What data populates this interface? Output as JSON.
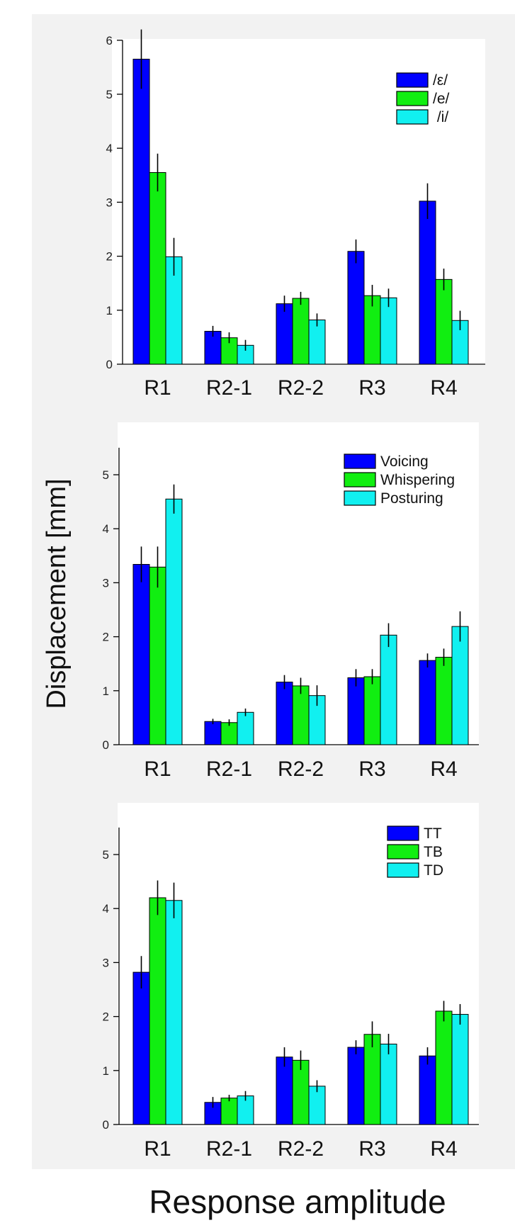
{
  "ylabel": "Displacement [mm]",
  "xlabel": "Response amplitude",
  "colors": {
    "series1": "#0000ff",
    "series2": "#11ee11",
    "series3": "#11f0f0",
    "panel_bg": "#f2f2f2"
  },
  "chart_data": [
    {
      "type": "bar",
      "categories": [
        "R1",
        "R2-1",
        "R2-2",
        "R3",
        "R4"
      ],
      "ylim": [
        0,
        6
      ],
      "yticks": [
        0,
        1,
        2,
        3,
        4,
        5,
        6
      ],
      "legend": "top-right",
      "series": [
        {
          "name": "/ε/",
          "values": [
            5.65,
            0.61,
            1.12,
            2.09,
            3.02
          ],
          "errors": [
            0.55,
            0.1,
            0.15,
            0.22,
            0.33
          ]
        },
        {
          "name": "/e/",
          "values": [
            3.55,
            0.49,
            1.22,
            1.27,
            1.57
          ],
          "errors": [
            0.35,
            0.1,
            0.12,
            0.2,
            0.2
          ]
        },
        {
          "name": " /i/",
          "values": [
            1.99,
            0.35,
            0.82,
            1.23,
            0.81
          ],
          "errors": [
            0.35,
            0.1,
            0.12,
            0.17,
            0.18
          ]
        }
      ]
    },
    {
      "type": "bar",
      "categories": [
        "R1",
        "R2-1",
        "R2-2",
        "R3",
        "R4"
      ],
      "ylim": [
        0,
        5.5
      ],
      "yticks": [
        0,
        1,
        2,
        3,
        4,
        5
      ],
      "legend": "top-right",
      "series": [
        {
          "name": "Voicing",
          "values": [
            3.34,
            0.43,
            1.16,
            1.24,
            1.56
          ],
          "errors": [
            0.33,
            0.05,
            0.13,
            0.16,
            0.13
          ]
        },
        {
          "name": "Whispering",
          "values": [
            3.29,
            0.41,
            1.09,
            1.26,
            1.62
          ],
          "errors": [
            0.38,
            0.06,
            0.15,
            0.14,
            0.16
          ]
        },
        {
          "name": "Posturing",
          "values": [
            4.55,
            0.6,
            0.91,
            2.03,
            2.19
          ],
          "errors": [
            0.27,
            0.07,
            0.19,
            0.22,
            0.28
          ]
        }
      ]
    },
    {
      "type": "bar",
      "categories": [
        "R1",
        "R2-1",
        "R2-2",
        "R3",
        "R4"
      ],
      "ylim": [
        0,
        5.5
      ],
      "yticks": [
        0,
        1,
        2,
        3,
        4,
        5
      ],
      "legend": "top-right",
      "series": [
        {
          "name": "TT",
          "values": [
            2.82,
            0.41,
            1.25,
            1.43,
            1.27
          ],
          "errors": [
            0.3,
            0.1,
            0.18,
            0.13,
            0.16
          ]
        },
        {
          "name": "TB",
          "values": [
            4.2,
            0.49,
            1.19,
            1.67,
            2.1
          ],
          "errors": [
            0.32,
            0.06,
            0.18,
            0.24,
            0.19
          ]
        },
        {
          "name": "TD",
          "values": [
            4.15,
            0.53,
            0.71,
            1.49,
            2.04
          ],
          "errors": [
            0.33,
            0.09,
            0.11,
            0.19,
            0.19
          ]
        }
      ]
    }
  ]
}
